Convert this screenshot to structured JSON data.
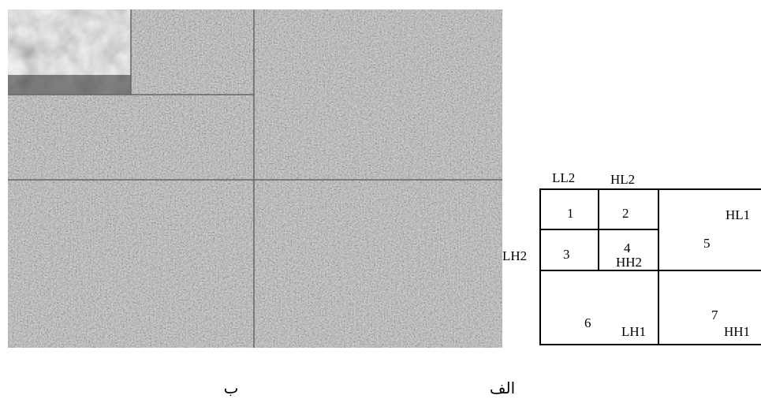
{
  "diagram": {
    "band_labels": {
      "ll2": "LL2",
      "hl2": "HL2",
      "lh2": "LH2",
      "hh2": "HH2",
      "hl1": "HL1",
      "lh1": "LH1",
      "hh1": "HH1"
    },
    "band_numbers": [
      "1",
      "2",
      "3",
      "4",
      "5",
      "6",
      "7"
    ]
  },
  "captions": {
    "left": "ب",
    "right": "الف"
  }
}
